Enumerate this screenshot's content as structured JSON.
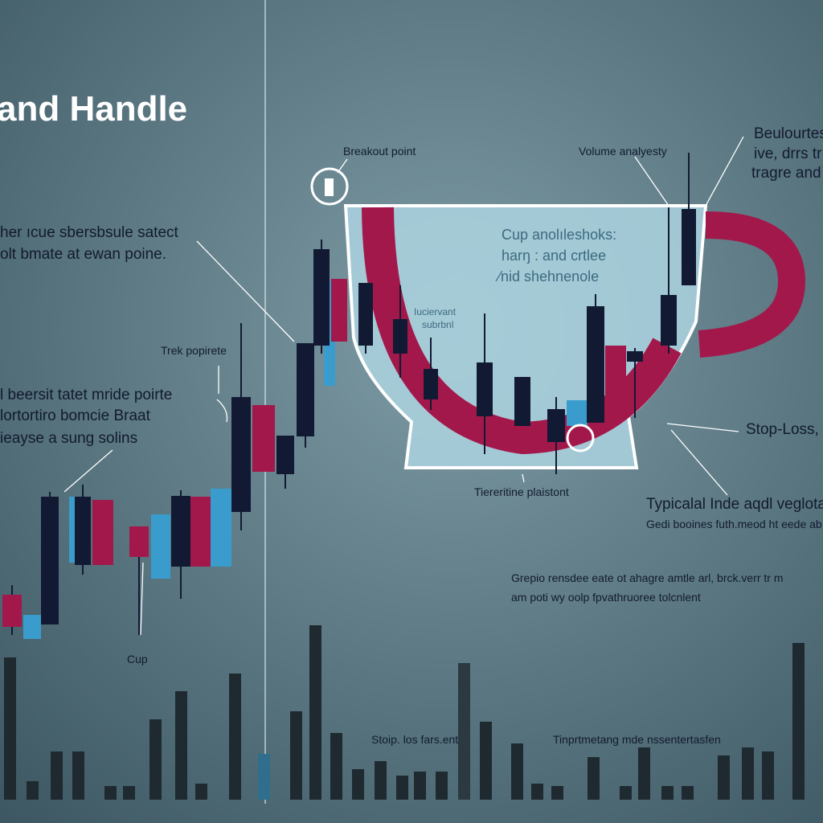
{
  "header": {
    "title": "and Handle"
  },
  "labels": {
    "breakout": "Breakout point",
    "volume": "Volume analyesty",
    "top_right": [
      "Beulourtes",
      "ive, drrs tr",
      "tragre and"
    ],
    "left_top": [
      "her ıcue sbersbsule satect",
      "olt bmate at ewan poine."
    ],
    "cup_text": [
      "Cup anolıleshoks:",
      "harŋ : and crtlee",
      "⁄nid shehnenole"
    ],
    "cup_small": [
      "Iuciervant",
      "subrbnl"
    ],
    "trek": "Trek popirete",
    "left_mid": [
      "l beersit tatet mride poirte",
      "lortortiro bomcie Braat",
      "ieayse a sung solins"
    ],
    "cup": "Cup",
    "bottom_cup": "Tiereritine plaistont",
    "stop_loss": "Stop-Loss,",
    "typical": [
      "Typicalal Inde aqdl veglotani",
      "Gedi booines futh.meod ht eede ab"
    ],
    "grepio": [
      "Grepio rensdee eate ot ahagre amtle arl, brck.verr tr m",
      "am poti wy oolp fpvathruoree tolcnlent"
    ],
    "stoip": "Stoip. los fars.ent",
    "tinprt": "Tinprtmetang mde nssentertasfen"
  }
}
